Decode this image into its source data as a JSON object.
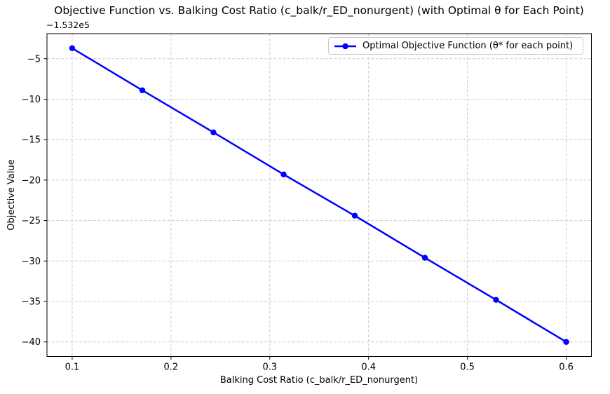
{
  "chart_data": {
    "type": "line",
    "title": "Objective Function vs. Balking Cost Ratio (c_balk/r_ED_nonurgent) (with Optimal θ for Each Point)",
    "xlabel": "Balking Cost Ratio (c_balk/r_ED_nonurgent)",
    "ylabel": "Objective Value",
    "y_offset_text": "−1.532e5",
    "series": [
      {
        "name": "Optimal Objective Function (θ* for each point)",
        "color": "#0000ff",
        "marker": "circle",
        "x": [
          0.1,
          0.171,
          0.243,
          0.314,
          0.386,
          0.457,
          0.529,
          0.6
        ],
        "y": [
          -3.7,
          -8.9,
          -14.1,
          -19.3,
          -24.4,
          -29.6,
          -34.8,
          -40.0
        ]
      }
    ],
    "xticks": [
      0.1,
      0.2,
      0.3,
      0.4,
      0.5,
      0.6
    ],
    "yticks": [
      -5,
      -10,
      -15,
      -20,
      -25,
      -30,
      -35,
      -40
    ],
    "xlim": [
      0.0745,
      0.6255
    ],
    "ylim": [
      -41.8,
      -1.9
    ],
    "grid": true,
    "grid_style": "dashed",
    "grid_color": "#cccccc",
    "legend_position": "upper right"
  }
}
